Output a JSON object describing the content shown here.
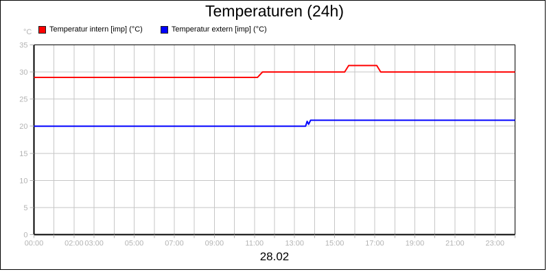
{
  "title": "Temperaturen (24h)",
  "unit_label": "°C",
  "date_label": "28.02",
  "legend": [
    {
      "label": "Temperatur intern [imp] (°C)",
      "color": "#ff0000"
    },
    {
      "label": "Temperatur extern [imp] (°C)",
      "color": "#0000ff"
    }
  ],
  "chart_data": {
    "type": "line",
    "title": "Temperaturen (24h)",
    "xlabel": "28.02",
    "ylabel": "°C",
    "ylim": [
      0,
      35
    ],
    "xlim_hours": [
      0,
      24
    ],
    "grid": true,
    "legend_position": "top-left",
    "y_ticks": [
      0,
      5,
      10,
      15,
      20,
      25,
      30,
      35
    ],
    "x_tick_hours_minor": "every hour 0-24",
    "x_tick_labels": [
      {
        "hour": 0,
        "label": "00:00"
      },
      {
        "hour": 2,
        "label": "02:00"
      },
      {
        "hour": 3,
        "label": "03:00"
      },
      {
        "hour": 5,
        "label": "05:00"
      },
      {
        "hour": 7,
        "label": "07:00"
      },
      {
        "hour": 9,
        "label": "09:00"
      },
      {
        "hour": 11,
        "label": "11:00"
      },
      {
        "hour": 13,
        "label": "13:00"
      },
      {
        "hour": 15,
        "label": "15:00"
      },
      {
        "hour": 17,
        "label": "17:00"
      },
      {
        "hour": 19,
        "label": "19:00"
      },
      {
        "hour": 21,
        "label": "21:00"
      },
      {
        "hour": 23,
        "label": "23:00"
      }
    ],
    "series": [
      {
        "name": "Temperatur intern [imp] (°C)",
        "color": "#ff0000",
        "points": [
          [
            0,
            29
          ],
          [
            11.15,
            29
          ],
          [
            11.4,
            30
          ],
          [
            15.5,
            30
          ],
          [
            15.7,
            31.2
          ],
          [
            17.1,
            31.2
          ],
          [
            17.3,
            30
          ],
          [
            24,
            30
          ]
        ]
      },
      {
        "name": "Temperatur extern [imp] (°C)",
        "color": "#0000ff",
        "points": [
          [
            0,
            20
          ],
          [
            13.55,
            20
          ],
          [
            13.63,
            20.9
          ],
          [
            13.7,
            20.35
          ],
          [
            13.8,
            21.1
          ],
          [
            24,
            21.1
          ]
        ]
      }
    ],
    "colors": {
      "grid": "#c6c6c6",
      "axis_tick_labels": "#b3b3b3",
      "plot_border": "#000000",
      "background": "#ffffff"
    }
  }
}
